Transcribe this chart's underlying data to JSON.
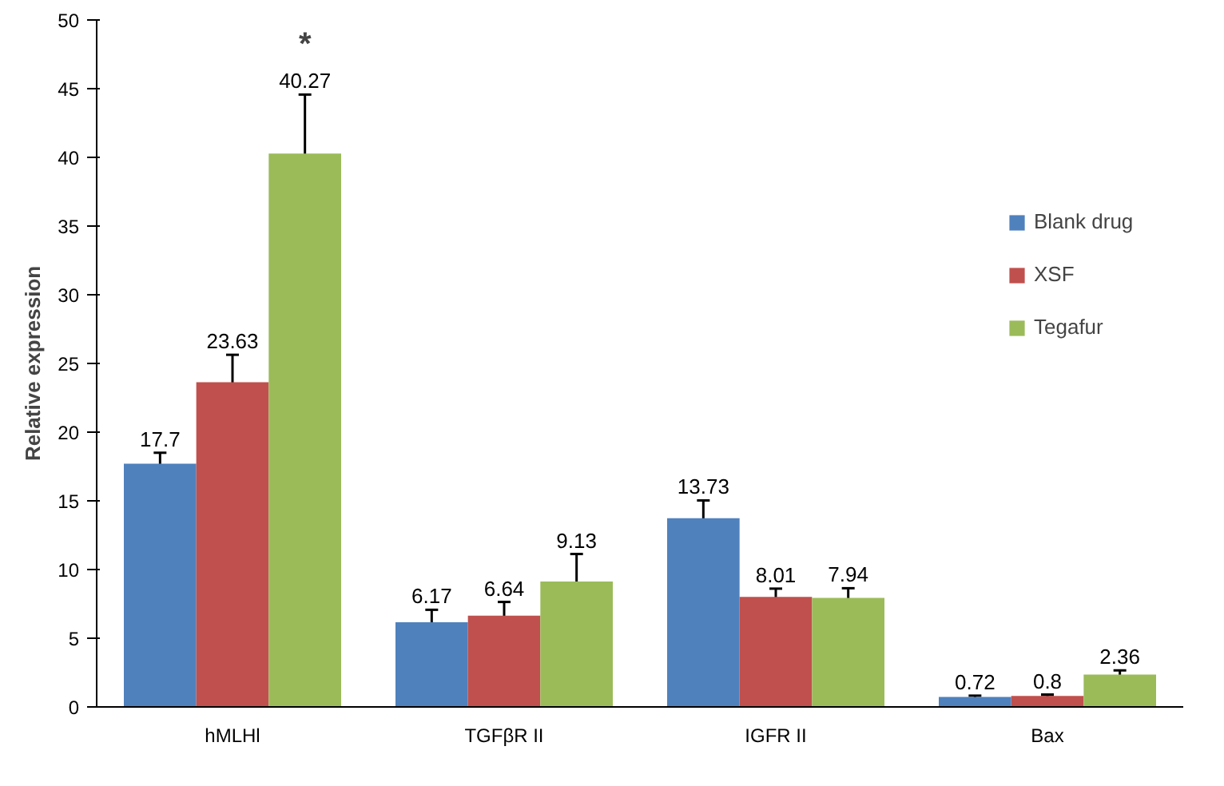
{
  "chart_data": {
    "type": "bar",
    "ylabel": "Relative expression",
    "categories": [
      "hMLHl",
      "TGFβR II",
      "IGFR II",
      "Bax"
    ],
    "series": [
      {
        "name": "Blank drug",
        "color": "#4f81bd",
        "values": [
          17.7,
          6.17,
          13.73,
          0.72
        ],
        "errors": [
          0.8,
          0.9,
          1.3,
          0.1
        ]
      },
      {
        "name": "XSF",
        "color": "#c0504d",
        "values": [
          23.63,
          6.64,
          8.01,
          0.8
        ],
        "errors": [
          2,
          1,
          0.6,
          0.1
        ]
      },
      {
        "name": "Tegafur",
        "color": "#9bbb59",
        "values": [
          40.27,
          9.13,
          7.94,
          2.36
        ],
        "errors": [
          4.3,
          2,
          0.7,
          0.3
        ]
      }
    ],
    "ylim": [
      0,
      50
    ],
    "yticks": [
      0,
      5,
      10,
      15,
      20,
      25,
      30,
      35,
      40,
      45,
      50
    ],
    "data_labels": true,
    "grid": false,
    "legend": "right",
    "annotations": [
      "*"
    ]
  }
}
